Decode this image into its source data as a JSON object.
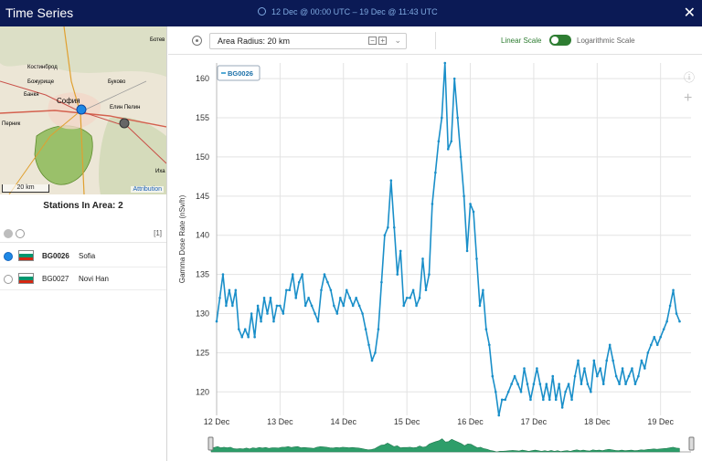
{
  "window": {
    "title": "Time Series",
    "time_range": "12 Dec @ 00:00 UTC  –  19 Dec @ 11:43 UTC",
    "close_symbol": "✕"
  },
  "map": {
    "labels": [
      "Ботев",
      "Костинброд",
      "Божурище",
      "Банкя",
      "София",
      "Перник",
      "Буково",
      "Елин Пелин",
      "Иха"
    ],
    "scale": "20 km",
    "attribution": "Attribution"
  },
  "stations_panel": {
    "title": "Stations In Area: 2",
    "count_badge": "[1]",
    "stations": [
      {
        "id": "BG0026",
        "name": "Sofia",
        "selected": true
      },
      {
        "id": "BG0027",
        "name": "Novi Han",
        "selected": false
      }
    ],
    "flag_colors": [
      "#ffffff",
      "#00966e",
      "#d62612"
    ]
  },
  "toolbar": {
    "radius_label": "Area Radius: 20 km",
    "zoom_out": "−",
    "zoom_in": "+",
    "linear_label": "Linear Scale",
    "log_label": "Logarithmic Scale",
    "accent": "#2e7d32"
  },
  "chart_data": {
    "type": "line",
    "ylabel": "Gamma Dose Rate (nSv/h)",
    "xlabel": "",
    "categories": [
      "12 Dec",
      "13 Dec",
      "14 Dec",
      "15 Dec",
      "16 Dec",
      "17 Dec",
      "18 Dec",
      "19 Dec"
    ],
    "x_range": [
      12.0,
      19.48
    ],
    "ylim": [
      117,
      162
    ],
    "yticks": [
      120,
      125,
      130,
      135,
      140,
      145,
      150,
      155,
      160
    ],
    "grid": true,
    "legend_position": "top-left",
    "series": [
      {
        "name": "BG0026",
        "color": "#1a8fc9",
        "points": [
          [
            12.0,
            129
          ],
          [
            12.05,
            132
          ],
          [
            12.1,
            135
          ],
          [
            12.15,
            131
          ],
          [
            12.2,
            133
          ],
          [
            12.25,
            131
          ],
          [
            12.3,
            133
          ],
          [
            12.35,
            128
          ],
          [
            12.4,
            127
          ],
          [
            12.45,
            128
          ],
          [
            12.5,
            127
          ],
          [
            12.55,
            130
          ],
          [
            12.6,
            127
          ],
          [
            12.65,
            131
          ],
          [
            12.7,
            129
          ],
          [
            12.75,
            132
          ],
          [
            12.8,
            130
          ],
          [
            12.85,
            132
          ],
          [
            12.9,
            129
          ],
          [
            12.95,
            131
          ],
          [
            13.0,
            131
          ],
          [
            13.05,
            130
          ],
          [
            13.1,
            133
          ],
          [
            13.15,
            133
          ],
          [
            13.2,
            135
          ],
          [
            13.25,
            132
          ],
          [
            13.3,
            134
          ],
          [
            13.35,
            135
          ],
          [
            13.4,
            131
          ],
          [
            13.45,
            132
          ],
          [
            13.5,
            131
          ],
          [
            13.55,
            130
          ],
          [
            13.6,
            129
          ],
          [
            13.65,
            133
          ],
          [
            13.7,
            135
          ],
          [
            13.75,
            134
          ],
          [
            13.8,
            133
          ],
          [
            13.85,
            131
          ],
          [
            13.9,
            130
          ],
          [
            13.95,
            132
          ],
          [
            14.0,
            131
          ],
          [
            14.05,
            133
          ],
          [
            14.1,
            132
          ],
          [
            14.15,
            131
          ],
          [
            14.2,
            132
          ],
          [
            14.25,
            131
          ],
          [
            14.3,
            130
          ],
          [
            14.35,
            128
          ],
          [
            14.4,
            126
          ],
          [
            14.45,
            124
          ],
          [
            14.5,
            125
          ],
          [
            14.55,
            128
          ],
          [
            14.6,
            134
          ],
          [
            14.65,
            140
          ],
          [
            14.7,
            141
          ],
          [
            14.75,
            147
          ],
          [
            14.8,
            141
          ],
          [
            14.85,
            135
          ],
          [
            14.9,
            138
          ],
          [
            14.95,
            131
          ],
          [
            15.0,
            132
          ],
          [
            15.05,
            132
          ],
          [
            15.1,
            133
          ],
          [
            15.15,
            131
          ],
          [
            15.2,
            132
          ],
          [
            15.25,
            137
          ],
          [
            15.3,
            133
          ],
          [
            15.35,
            135
          ],
          [
            15.4,
            144
          ],
          [
            15.45,
            148
          ],
          [
            15.5,
            152
          ],
          [
            15.55,
            155
          ],
          [
            15.6,
            162
          ],
          [
            15.65,
            151
          ],
          [
            15.7,
            152
          ],
          [
            15.75,
            160
          ],
          [
            15.8,
            155
          ],
          [
            15.85,
            150
          ],
          [
            15.9,
            145
          ],
          [
            15.95,
            138
          ],
          [
            16.0,
            144
          ],
          [
            16.05,
            143
          ],
          [
            16.1,
            137
          ],
          [
            16.15,
            131
          ],
          [
            16.2,
            133
          ],
          [
            16.25,
            128
          ],
          [
            16.3,
            126
          ],
          [
            16.35,
            122
          ],
          [
            16.4,
            120
          ],
          [
            16.45,
            117
          ],
          [
            16.5,
            119
          ],
          [
            16.55,
            119
          ],
          [
            16.6,
            120
          ],
          [
            16.65,
            121
          ],
          [
            16.7,
            122
          ],
          [
            16.75,
            121
          ],
          [
            16.8,
            120
          ],
          [
            16.85,
            123
          ],
          [
            16.9,
            121
          ],
          [
            16.95,
            119
          ],
          [
            17.0,
            121
          ],
          [
            17.05,
            123
          ],
          [
            17.1,
            121
          ],
          [
            17.15,
            119
          ],
          [
            17.2,
            121
          ],
          [
            17.25,
            119
          ],
          [
            17.3,
            122
          ],
          [
            17.35,
            119
          ],
          [
            17.4,
            121
          ],
          [
            17.45,
            118
          ],
          [
            17.5,
            120
          ],
          [
            17.55,
            121
          ],
          [
            17.6,
            119
          ],
          [
            17.65,
            122
          ],
          [
            17.7,
            124
          ],
          [
            17.75,
            121
          ],
          [
            17.8,
            123
          ],
          [
            17.85,
            121
          ],
          [
            17.9,
            120
          ],
          [
            17.95,
            124
          ],
          [
            18.0,
            122
          ],
          [
            18.05,
            123
          ],
          [
            18.1,
            121
          ],
          [
            18.15,
            124
          ],
          [
            18.2,
            126
          ],
          [
            18.25,
            124
          ],
          [
            18.3,
            122
          ],
          [
            18.35,
            121
          ],
          [
            18.4,
            123
          ],
          [
            18.45,
            121
          ],
          [
            18.5,
            122
          ],
          [
            18.55,
            123
          ],
          [
            18.6,
            121
          ],
          [
            18.65,
            122
          ],
          [
            18.7,
            124
          ],
          [
            18.75,
            123
          ],
          [
            18.8,
            125
          ],
          [
            18.85,
            126
          ],
          [
            18.9,
            127
          ],
          [
            18.95,
            126
          ],
          [
            19.0,
            127
          ],
          [
            19.05,
            128
          ],
          [
            19.1,
            129
          ],
          [
            19.15,
            131
          ],
          [
            19.2,
            133
          ],
          [
            19.25,
            130
          ],
          [
            19.3,
            129
          ]
        ]
      }
    ]
  }
}
